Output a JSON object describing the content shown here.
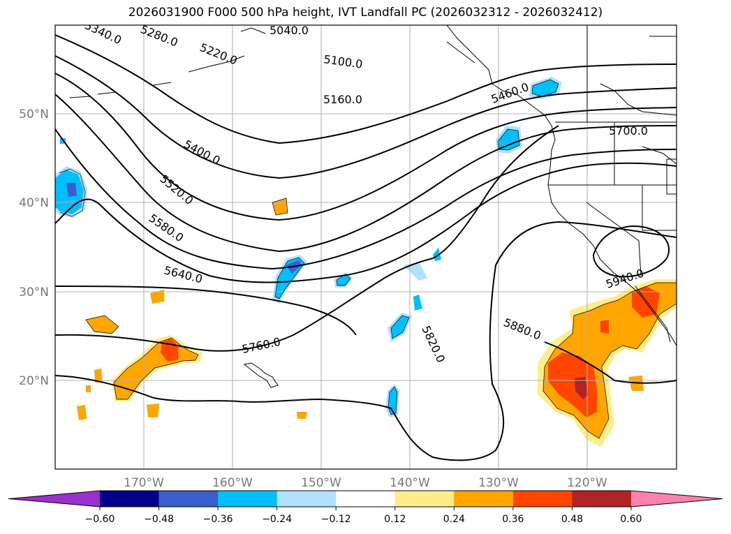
{
  "title": "2026031900 F000 500 hPa height, IVT Landfall PC (2026032312 - 2026032412)",
  "map": {
    "lon_range": [
      -180,
      -110
    ],
    "lat_range": [
      10,
      60
    ],
    "lat_labels": [
      "50°N",
      "40°N",
      "30°N",
      "20°N"
    ],
    "lon_labels": [
      "170°W",
      "160°W",
      "150°W",
      "140°W",
      "130°W",
      "120°W"
    ],
    "grid": true
  },
  "contour_labels": [
    "5040.0",
    "5100.0",
    "5160.0",
    "5220.0",
    "5280.0",
    "5340.0",
    "5400.0",
    "5460.0",
    "5520.0",
    "5580.0",
    "5640.0",
    "5700.0",
    "5760.0",
    "5820.0",
    "5880.0",
    "5940.0"
  ],
  "colorbar": {
    "ticks": [
      "−0.60",
      "−0.48",
      "−0.36",
      "−0.24",
      "−0.12",
      "0.12",
      "0.24",
      "0.36",
      "0.48",
      "0.60"
    ],
    "colors": [
      "#9932cc",
      "#00008b",
      "#3a5fcd",
      "#00bfff",
      "#b0e2ff",
      "#ffffff",
      "#ffec8b",
      "#ffa500",
      "#ff4500",
      "#b22222",
      "#ff82ab"
    ],
    "extend": "both"
  }
}
